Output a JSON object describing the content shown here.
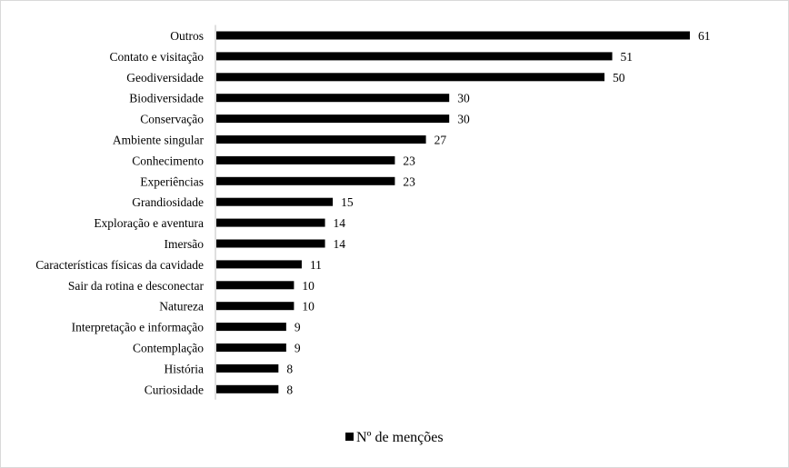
{
  "chart_data": {
    "type": "bar",
    "orientation": "horizontal",
    "categories": [
      "Outros",
      "Contato e visitação",
      "Geodiversidade",
      "Biodiversidade",
      "Conservação",
      "Ambiente singular",
      "Conhecimento",
      "Experiências",
      "Grandiosidade",
      "Exploração e aventura",
      "Imersão",
      "Características físicas da cavidade",
      "Sair da rotina e desconectar",
      "Natureza",
      "Interpretação e informação",
      "Contemplação",
      "História",
      "Curiosidade"
    ],
    "series": [
      {
        "name": "Nº de menções",
        "values": [
          61,
          51,
          50,
          30,
          30,
          27,
          23,
          23,
          15,
          14,
          14,
          11,
          10,
          10,
          9,
          9,
          8,
          8
        ],
        "color": "#000000"
      }
    ],
    "data_labels": true,
    "grid": false,
    "legend_position": "bottom"
  }
}
